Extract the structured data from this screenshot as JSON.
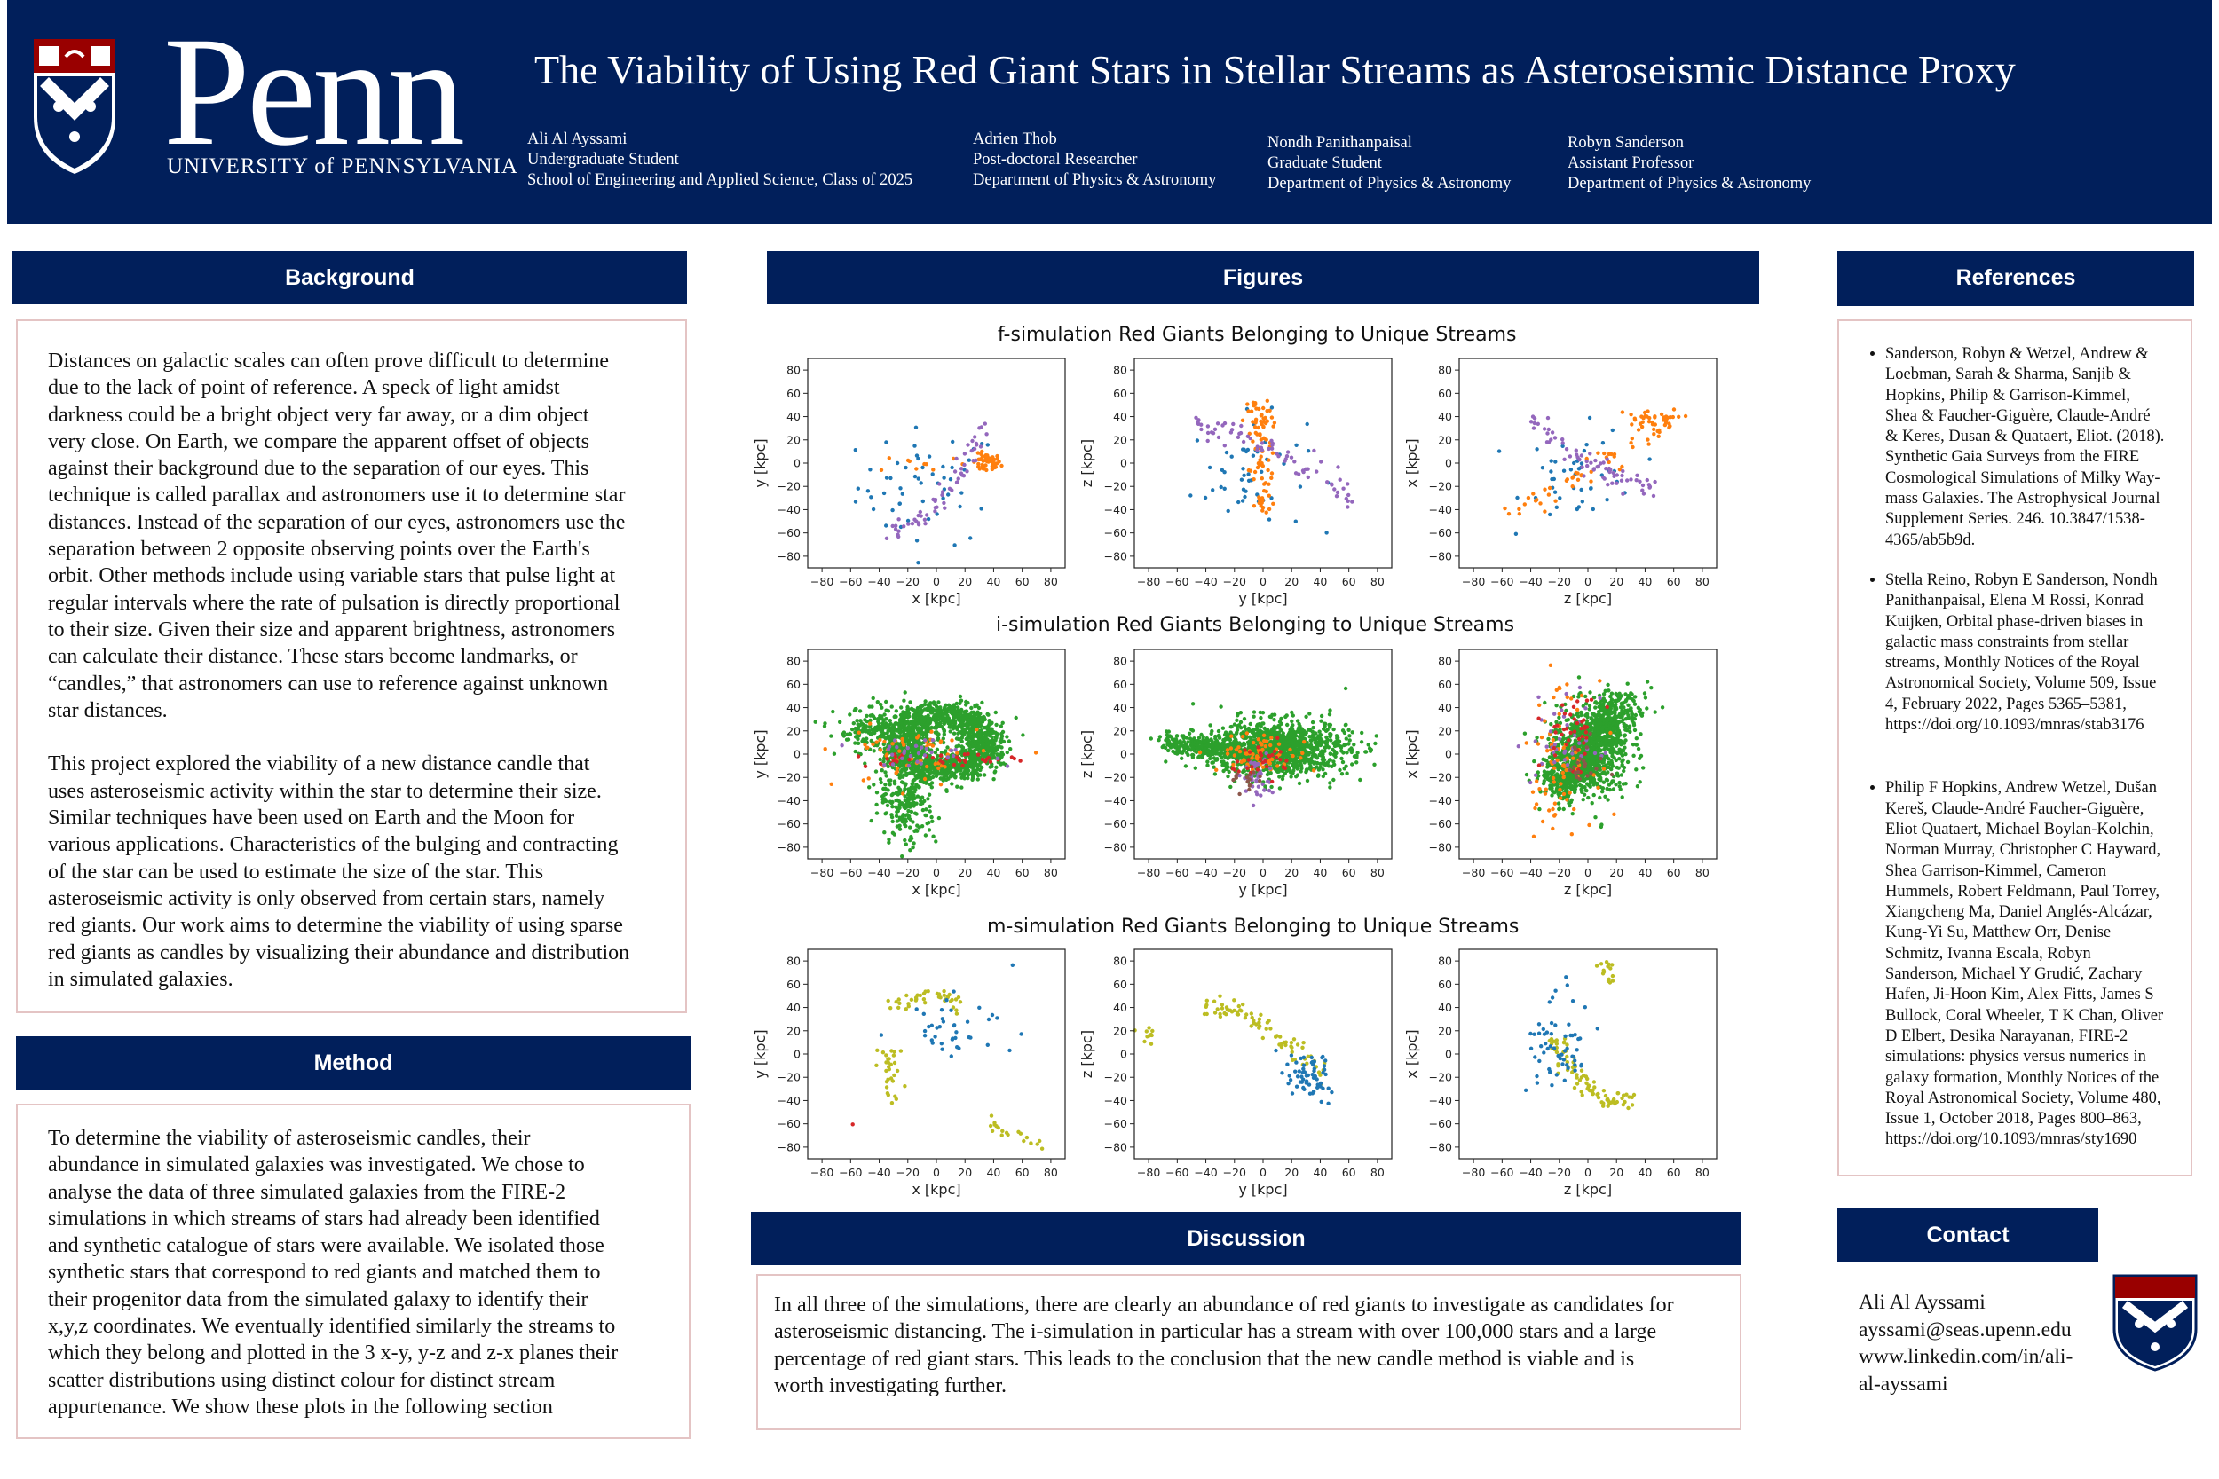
{
  "header": {
    "logo_word": "Penn",
    "logo_subtitle": "UNIVERSITY of PENNSYLVANIA",
    "title": "The Viability of Using Red Giant Stars in Stellar Streams as Asteroseismic Distance Proxy",
    "authors": [
      {
        "name": "Ali Al Ayssami",
        "role": "Undergraduate Student",
        "affiliation": "School of Engineering and Applied Science, Class of 2025"
      },
      {
        "name": "Adrien Thob",
        "role": "Post-doctoral Researcher",
        "affiliation": "Department of Physics & Astronomy"
      },
      {
        "name": "Nondh Panithanpaisal",
        "role": "Graduate Student",
        "affiliation": "Department of Physics & Astronomy"
      },
      {
        "name": "Robyn Sanderson",
        "role": "Assistant Professor",
        "affiliation": "Department of Physics & Astronomy"
      }
    ],
    "colors": {
      "penn_blue": "#011f5b",
      "penn_red": "#990000"
    }
  },
  "background": {
    "heading": "Background",
    "lines": [
      "Distances on galactic scales can often prove difficult to determine",
      "due to the lack of point of reference. A speck of light amidst",
      "darkness could be a bright object very far away, or a dim object",
      "very close.  On Earth, we compare the apparent offset of objects",
      "against their background due to the separation of our eyes. This",
      "technique is called parallax and astronomers use it to determine star",
      "distances. Instead of the separation of our eyes, astronomers use the",
      "separation between 2 opposite observing points over the Earth's",
      "orbit. Other methods include using variable stars that pulse light at",
      "regular intervals where the rate of pulsation is directly proportional",
      "to their size. Given their size and apparent brightness, astronomers",
      "can calculate their distance. These stars become landmarks, or",
      "“candles,” that astronomers can use to reference against unknown",
      "star distances.",
      "",
      "This project explored the viability of a new distance candle that",
      "uses asteroseismic activity within the star to determine their size.",
      "Similar techniques have been used on Earth and the Moon for",
      "various applications. Characteristics of the bulging and contracting",
      "of the star can be used to estimate the size of the star. This",
      "asteroseismic activity is only observed from certain stars, namely",
      "red giants. Our work aims to determine the viability  of using sparse",
      "red giants as candles by visualizing their abundance and distribution",
      "in simulated galaxies."
    ]
  },
  "method": {
    "heading": "Method",
    "lines": [
      "To determine the viability of asteroseismic candles, their",
      "abundance in simulated galaxies was investigated. We chose to",
      "analyse the data of three simulated galaxies from the FIRE-2",
      "simulations in which streams of stars had already been identified",
      "and synthetic catalogue of stars were available. We isolated those",
      "synthetic stars that correspond to red giants and matched them to",
      "their progenitor data from the simulated galaxy to identify their",
      "x,y,z coordinates. We eventually identified similarly the streams to",
      "which they belong and plotted in the 3 x-y, y-z and z-x planes their",
      "scatter distributions using distinct colour for distinct stream",
      "appurtenance. We show these plots in the following section"
    ]
  },
  "figures": {
    "heading": "Figures",
    "panels": [
      {
        "title": "f-simulation Red Giants Belonging to Unique Streams"
      },
      {
        "title": "i-simulation Red Giants Belonging to Unique Streams"
      },
      {
        "title": "m-simulation Red Giants Belonging to Unique Streams"
      }
    ]
  },
  "chart_data": [
    {
      "type": "scatter",
      "title": "f-simulation Red Giants Belonging to Unique Streams",
      "panels": [
        {
          "xlabel": "x [kpc]",
          "ylabel": "y [kpc]",
          "xlim": [
            -90,
            90
          ],
          "ylim": [
            -90,
            90
          ]
        },
        {
          "xlabel": "y [kpc]",
          "ylabel": "z [kpc]",
          "xlim": [
            -90,
            90
          ],
          "ylim": [
            -90,
            90
          ]
        },
        {
          "xlabel": "z [kpc]",
          "ylabel": "x [kpc]",
          "xlim": [
            -90,
            90
          ],
          "ylim": [
            -90,
            90
          ]
        }
      ],
      "series_colors": [
        "#1f77b4",
        "#ff7f0e",
        "#9467bd"
      ],
      "xticks": [
        -80,
        -60,
        -40,
        -20,
        0,
        20,
        40,
        60,
        80
      ],
      "yticks": [
        80,
        60,
        40,
        20,
        0,
        -20,
        -40,
        -60,
        -80
      ]
    },
    {
      "type": "scatter",
      "title": "i-simulation Red Giants Belonging to Unique Streams",
      "panels": [
        {
          "xlabel": "x [kpc]",
          "ylabel": "y [kpc]",
          "xlim": [
            -90,
            90
          ],
          "ylim": [
            -90,
            90
          ]
        },
        {
          "xlabel": "y [kpc]",
          "ylabel": "z [kpc]",
          "xlim": [
            -90,
            90
          ],
          "ylim": [
            -90,
            90
          ]
        },
        {
          "xlabel": "z [kpc]",
          "ylabel": "x [kpc]",
          "xlim": [
            -90,
            90
          ],
          "ylim": [
            -90,
            90
          ]
        }
      ],
      "series_colors": [
        "#2ca02c",
        "#ff7f0e",
        "#9467bd",
        "#d62728",
        "#8c564b"
      ],
      "xticks": [
        -80,
        -60,
        -40,
        -20,
        0,
        20,
        40,
        60,
        80
      ],
      "yticks": [
        80,
        60,
        40,
        20,
        0,
        -20,
        -40,
        -60,
        -80
      ]
    },
    {
      "type": "scatter",
      "title": "m-simulation Red Giants Belonging to Unique Streams",
      "panels": [
        {
          "xlabel": "x [kpc]",
          "ylabel": "y [kpc]",
          "xlim": [
            -90,
            90
          ],
          "ylim": [
            -90,
            90
          ]
        },
        {
          "xlabel": "y [kpc]",
          "ylabel": "z [kpc]",
          "xlim": [
            -90,
            90
          ],
          "ylim": [
            -90,
            90
          ]
        },
        {
          "xlabel": "z [kpc]",
          "ylabel": "x [kpc]",
          "xlim": [
            -90,
            90
          ],
          "ylim": [
            -90,
            90
          ]
        }
      ],
      "series_colors": [
        "#bcbd22",
        "#1f77b4",
        "#d62728"
      ],
      "xticks": [
        -80,
        -60,
        -40,
        -20,
        0,
        20,
        40,
        60,
        80
      ],
      "yticks": [
        80,
        60,
        40,
        20,
        0,
        -20,
        -40,
        -60,
        -80
      ]
    }
  ],
  "discussion": {
    "heading": "Discussion",
    "lines": [
      "In all three of the simulations, there are clearly an abundance of red giants to investigate as candidates for",
      "asteroseismic distancing. The i-simulation in particular has a stream with over 100,000 stars and a large",
      "percentage of red giant stars. This leads to the conclusion that the new candle method is viable and is",
      "worth investigating further."
    ]
  },
  "references": {
    "heading": "References",
    "items": [
      [
        "Sanderson, Robyn & Wetzel, Andrew &",
        "Loebman, Sarah & Sharma, Sanjib &",
        "Hopkins, Philip & Garrison-Kimmel,",
        "Shea & Faucher-Giguère, Claude-André",
        "& Keres, Dusan & Quataert, Eliot. (2018).",
        "Synthetic Gaia Surveys from the FIRE",
        "Cosmological Simulations of Milky Way-",
        "mass Galaxies. The Astrophysical Journal",
        "Supplement Series. 246. 10.3847/1538-",
        "4365/ab5b9d."
      ],
      [
        "Stella Reino, Robyn E Sanderson, Nondh",
        "Panithanpaisal, Elena M Rossi, Konrad",
        "Kuijken, Orbital phase-driven biases in",
        "galactic mass constraints from stellar",
        "streams, Monthly Notices of the Royal",
        "Astronomical Society, Volume 509, Issue",
        "4, February 2022, Pages 5365–5381,",
        "https://doi.org/10.1093/mnras/stab3176"
      ],
      [
        "Philip F Hopkins, Andrew Wetzel, Dušan",
        "Kereš, Claude-André Faucher-Giguère,",
        "Eliot Quataert, Michael Boylan-Kolchin,",
        "Norman Murray, Christopher C Hayward,",
        "Shea Garrison-Kimmel, Cameron",
        "Hummels, Robert Feldmann, Paul Torrey,",
        "Xiangcheng Ma, Daniel Anglés-Alcázar,",
        "Kung-Yi Su, Matthew Orr, Denise",
        "Schmitz, Ivanna Escala, Robyn",
        "Sanderson, Michael Y Grudić, Zachary",
        "Hafen, Ji-Hoon Kim, Alex Fitts, James S",
        "Bullock, Coral Wheeler, T K Chan, Oliver",
        "D Elbert, Desika Narayanan, FIRE-2",
        "simulations: physics versus numerics in",
        "galaxy  formation, Monthly Notices of the",
        "Royal Astronomical Society, Volume 480,",
        "Issue 1, October 2018, Pages 800–863,",
        "https://doi.org/10.1093/mnras/sty1690"
      ]
    ]
  },
  "contact": {
    "heading": "Contact",
    "lines": [
      "Ali Al Ayssami",
      "ayssami@seas.upenn.edu",
      "www.linkedin.com/in/ali-",
      "al-ayssami"
    ]
  }
}
